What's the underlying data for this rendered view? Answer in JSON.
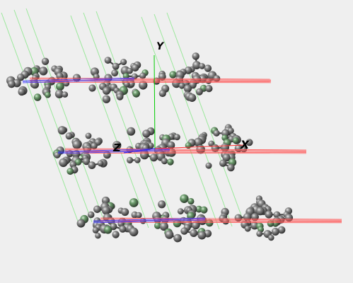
{
  "viewer": {
    "axes": {
      "x_label": "X",
      "y_label": "Y",
      "z_label": "Z",
      "x_color": "#ff0000",
      "y_color": "#00cc00",
      "z_color": "#0000ff"
    },
    "structure": {
      "layers": 3,
      "molecules_per_layer": 3,
      "atom_color": "#5a5a5a",
      "atom_highlight_color": "#e8e8e8",
      "atom_accent_color": "#6f9f6f"
    },
    "background_color": "#efefef"
  }
}
